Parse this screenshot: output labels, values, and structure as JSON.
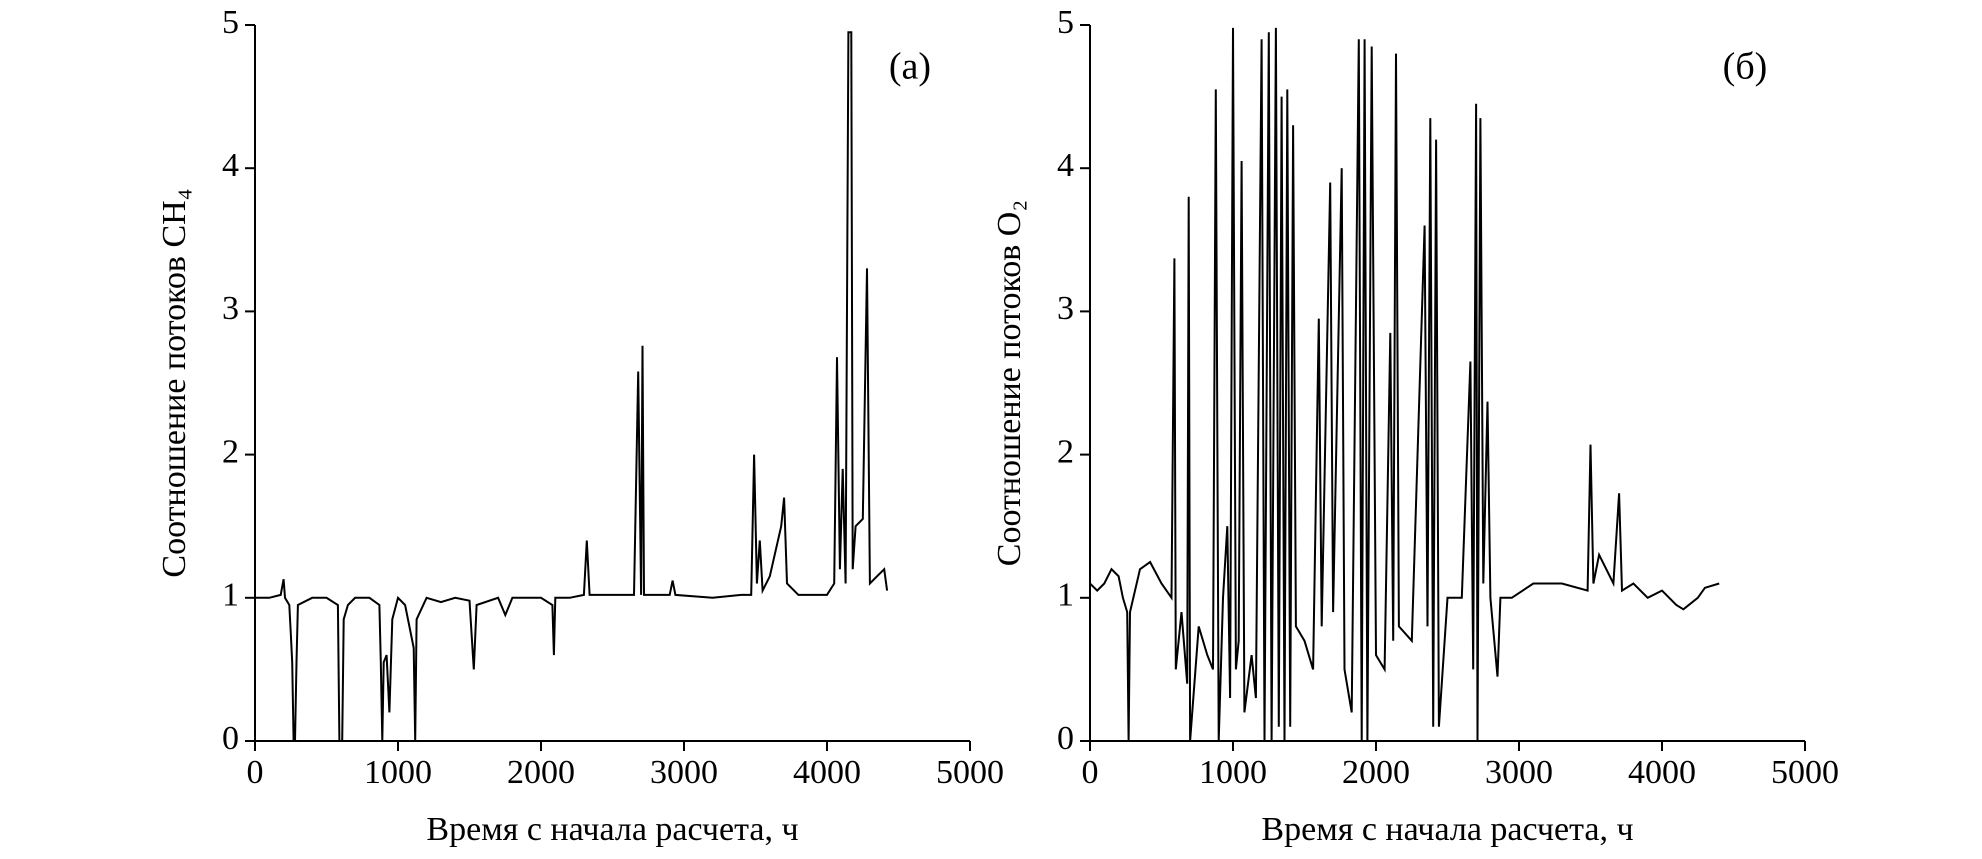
{
  "chart_data": [
    {
      "type": "line",
      "annotation": "(а)",
      "ylabel": "Соотношение потоков CH₄",
      "xlabel": "Время с начала расчета, ч",
      "xlim": [
        0,
        5000
      ],
      "ylim": [
        0,
        5
      ],
      "xticks": [
        0,
        1000,
        2000,
        3000,
        4000,
        5000
      ],
      "yticks": [
        0,
        1,
        2,
        3,
        4,
        5
      ],
      "color": "#000000",
      "x": [
        0,
        100,
        180,
        200,
        210,
        240,
        250,
        260,
        270,
        280,
        290,
        300,
        400,
        500,
        580,
        590,
        610,
        620,
        650,
        700,
        800,
        870,
        880,
        890,
        900,
        920,
        940,
        960,
        1000,
        1050,
        1080,
        1110,
        1120,
        1130,
        1200,
        1300,
        1400,
        1500,
        1530,
        1550,
        1700,
        1750,
        1800,
        2000,
        2080,
        2090,
        2100,
        2200,
        2300,
        2320,
        2340,
        2500,
        2650,
        2680,
        2700,
        2710,
        2720,
        2900,
        2920,
        2940,
        3200,
        3400,
        3470,
        3490,
        3510,
        3530,
        3550,
        3600,
        3680,
        3700,
        3720,
        3800,
        4000,
        4050,
        4070,
        4090,
        4110,
        4130,
        4150,
        4170,
        4180,
        4200,
        4250,
        4280,
        4300,
        4350,
        4400,
        4420
      ],
      "values": [
        1.0,
        1.0,
        1.02,
        1.13,
        1.0,
        0.95,
        0.75,
        0.55,
        0,
        0,
        0.55,
        0.95,
        1.0,
        1.0,
        0.95,
        0,
        0,
        0.85,
        0.95,
        1.0,
        1.0,
        0.95,
        0.55,
        0,
        0.55,
        0.6,
        0.2,
        0.85,
        1.0,
        0.95,
        0.8,
        0.65,
        0,
        0.85,
        1.0,
        0.97,
        1.0,
        0.98,
        0.5,
        0.95,
        1.0,
        0.88,
        1.0,
        1.0,
        0.95,
        0.6,
        1.0,
        1.0,
        1.02,
        1.4,
        1.02,
        1.02,
        1.02,
        2.58,
        1.02,
        2.76,
        1.02,
        1.02,
        1.12,
        1.02,
        1.0,
        1.02,
        1.02,
        2.0,
        1.1,
        1.4,
        1.05,
        1.15,
        1.5,
        1.7,
        1.1,
        1.02,
        1.02,
        1.1,
        2.68,
        1.2,
        1.9,
        1.1,
        4.95,
        4.95,
        1.2,
        1.5,
        1.55,
        3.3,
        1.1,
        1.15,
        1.2,
        1.05
      ]
    },
    {
      "type": "line",
      "annotation": "(б)",
      "ylabel": "Соотношение потоков O₂",
      "xlabel": "Время с начала расчета, ч",
      "xlim": [
        0,
        5000
      ],
      "ylim": [
        0,
        5
      ],
      "xticks": [
        0,
        1000,
        2000,
        3000,
        4000,
        5000
      ],
      "yticks": [
        0,
        1,
        2,
        3,
        4,
        5
      ],
      "color": "#000000",
      "x": [
        0,
        50,
        100,
        150,
        200,
        230,
        260,
        270,
        280,
        350,
        420,
        500,
        570,
        590,
        600,
        640,
        680,
        690,
        700,
        760,
        820,
        860,
        880,
        900,
        930,
        960,
        980,
        1000,
        1020,
        1040,
        1060,
        1080,
        1130,
        1160,
        1200,
        1220,
        1250,
        1270,
        1300,
        1320,
        1340,
        1360,
        1380,
        1400,
        1420,
        1440,
        1500,
        1560,
        1600,
        1620,
        1680,
        1700,
        1760,
        1780,
        1830,
        1880,
        1900,
        1920,
        1940,
        1970,
        2000,
        2060,
        2100,
        2120,
        2140,
        2160,
        2250,
        2340,
        2360,
        2380,
        2400,
        2420,
        2440,
        2500,
        2600,
        2660,
        2680,
        2700,
        2710,
        2730,
        2750,
        2780,
        2800,
        2850,
        2870,
        2950,
        3100,
        3300,
        3480,
        3500,
        3520,
        3560,
        3660,
        3700,
        3720,
        3800,
        3900,
        4000,
        4100,
        4150,
        4250,
        4300,
        4400
      ],
      "values": [
        1.1,
        1.05,
        1.1,
        1.2,
        1.15,
        1.0,
        0.9,
        0,
        0.9,
        1.2,
        1.25,
        1.1,
        1.0,
        3.37,
        0.5,
        0.9,
        0.4,
        3.8,
        0,
        0.8,
        0.6,
        0.5,
        4.55,
        0,
        1.0,
        1.5,
        0.3,
        4.98,
        0.5,
        0.7,
        4.05,
        0.2,
        0.6,
        0.3,
        4.9,
        0,
        4.95,
        0,
        4.98,
        0.1,
        4.5,
        0,
        4.55,
        0.1,
        4.3,
        0.8,
        0.7,
        0.5,
        2.95,
        0.8,
        3.9,
        0.9,
        4.0,
        0.5,
        0.2,
        4.9,
        0,
        4.9,
        0,
        4.85,
        0.6,
        0.5,
        2.85,
        0.7,
        4.8,
        0.8,
        0.7,
        3.6,
        0.8,
        4.35,
        0.1,
        4.2,
        0.1,
        1.0,
        1.0,
        2.65,
        0.5,
        4.45,
        0,
        4.35,
        1.1,
        2.37,
        1.0,
        0.45,
        1.0,
        1.0,
        1.1,
        1.1,
        1.05,
        2.07,
        1.1,
        1.3,
        1.1,
        1.73,
        1.05,
        1.1,
        1.0,
        1.05,
        0.95,
        0.92,
        1.0,
        1.07,
        1.1
      ]
    }
  ]
}
